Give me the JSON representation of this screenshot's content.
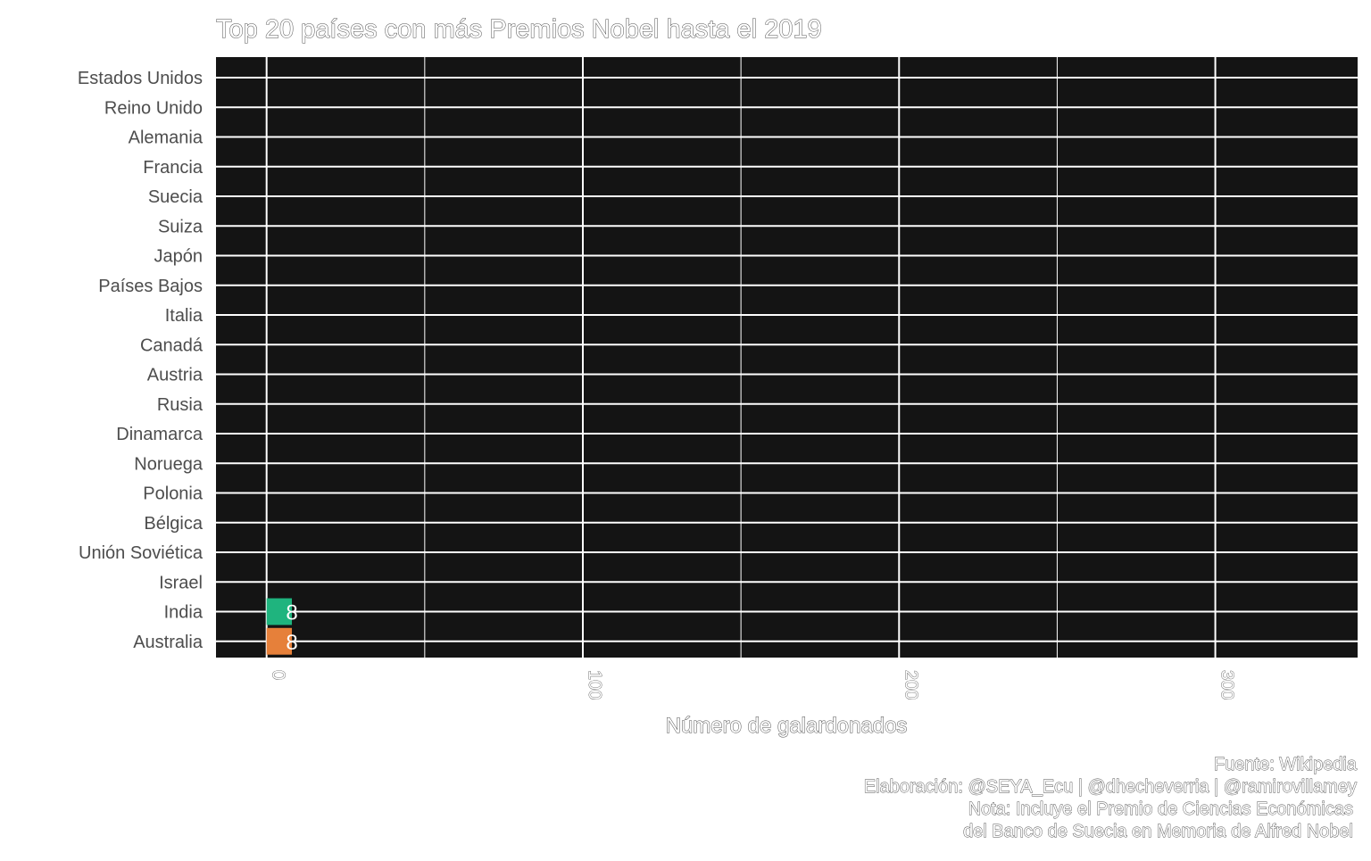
{
  "chart_data": {
    "type": "bar",
    "orientation": "horizontal",
    "title": "Top 20 países con más Premios Nobel hasta el 2019",
    "xlabel": "Número de galardonados",
    "ylabel": "",
    "categories": [
      "Estados Unidos",
      "Reino Unido",
      "Alemania",
      "Francia",
      "Suecia",
      "Suiza",
      "Japón",
      "Países Bajos",
      "Italia",
      "Canadá",
      "Austria",
      "Rusia",
      "Dinamarca",
      "Noruega",
      "Polonia",
      "Bélgica",
      "Unión Soviética",
      "Israel",
      "India",
      "Australia"
    ],
    "values": [
      null,
      null,
      null,
      null,
      null,
      null,
      null,
      null,
      null,
      null,
      null,
      null,
      null,
      null,
      null,
      null,
      null,
      null,
      8,
      8
    ],
    "data_labels": [
      "",
      "",
      "",
      "",
      "",
      "",
      "",
      "",
      "",
      "",
      "",
      "",
      "",
      "",
      "",
      "",
      "",
      "",
      "8",
      "8"
    ],
    "bar_colors": {
      "India": "#1fb47e",
      "Australia": "#e6803a"
    },
    "xlim": [
      -16,
      345
    ],
    "x_ticks": [
      0,
      100,
      200,
      300
    ],
    "x_tick_labels": [
      "0",
      "100",
      "200",
      "300"
    ],
    "grid": true,
    "panel_background": "#141414",
    "grid_color": "#ffffff",
    "legend": "none",
    "caption": [
      "Fuente: Wikipedia",
      "Elaboración: @SEYA_Ecu | @dhecheverria | @ramirovillamey",
      "Nota: Incluye el Premio de Ciencias Económicas",
      "del Banco de Suecia en Memoria de Alfred Nobel"
    ]
  }
}
